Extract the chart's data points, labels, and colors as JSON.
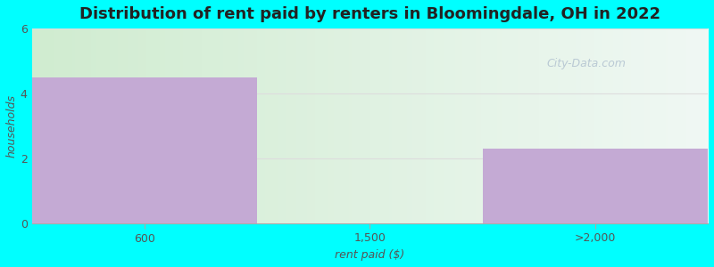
{
  "title": "Distribution of rent paid by renters in Bloomingdale, OH in 2022",
  "categories": [
    "600",
    "1,500",
    ">2,000"
  ],
  "values": [
    4.5,
    0,
    2.3
  ],
  "bar_color": "#c4aad4",
  "background_color": "#00FFFF",
  "xlabel": "rent paid ($)",
  "ylabel": "households",
  "ylim": [
    0,
    6
  ],
  "yticks": [
    0,
    2,
    4,
    6
  ],
  "title_fontsize": 13,
  "axis_label_fontsize": 9,
  "tick_fontsize": 9,
  "watermark": "City-Data.com",
  "bin_edges": [
    0,
    1,
    2,
    3
  ],
  "grid_color": "#dddddd",
  "grad_left_color": "#d0ecd0",
  "grad_right_color": "#f0f8f4"
}
